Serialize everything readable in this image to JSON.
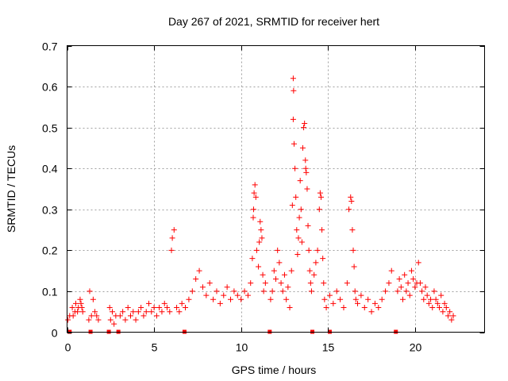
{
  "chart_data": {
    "type": "scatter",
    "title": "Day 267 of 2021, SRMTID for receiver hert",
    "xlabel": "GPS time / hours",
    "ylabel": "SRMTID / TECUs",
    "xlim": [
      0,
      24
    ],
    "ylim": [
      0,
      0.7
    ],
    "x_ticks": [
      0,
      5,
      10,
      15,
      20
    ],
    "x_tick_labels": [
      "0",
      "5",
      "10",
      "15",
      "20"
    ],
    "y_ticks": [
      0,
      0.1,
      0.2,
      0.3,
      0.4,
      0.5,
      0.6,
      0.7
    ],
    "y_tick_labels": [
      "0",
      "0.1",
      "0.2",
      "0.3",
      "0.4",
      "0.5",
      "0.6",
      "0.7"
    ],
    "grid": true,
    "series_color": "#ff0000",
    "marker": "plus",
    "zero_markers_x": [
      0.15,
      1.35,
      2.4,
      2.95,
      6.75,
      11.65,
      14.1,
      15.1,
      18.9
    ],
    "series": [
      {
        "name": "SRMTID",
        "x": [
          0.05,
          0.15,
          0.3,
          0.35,
          0.45,
          0.5,
          0.6,
          0.65,
          0.75,
          0.8,
          0.85,
          0.9,
          1.25,
          1.3,
          1.4,
          1.5,
          1.6,
          1.7,
          1.8,
          2.45,
          2.5,
          2.6,
          2.7,
          2.8,
          3.05,
          3.2,
          3.35,
          3.5,
          3.65,
          3.8,
          3.95,
          4.1,
          4.25,
          4.4,
          4.55,
          4.7,
          4.85,
          5.0,
          5.15,
          5.3,
          5.45,
          5.6,
          5.75,
          5.9,
          6.0,
          6.05,
          6.15,
          6.3,
          6.45,
          6.6,
          6.8,
          7.0,
          7.2,
          7.4,
          7.6,
          7.8,
          8.0,
          8.2,
          8.4,
          8.6,
          8.8,
          9.0,
          9.2,
          9.4,
          9.6,
          9.8,
          10.0,
          10.2,
          10.4,
          10.55,
          10.65,
          10.7,
          10.72,
          10.75,
          10.8,
          10.85,
          10.9,
          11.0,
          11.05,
          11.1,
          11.15,
          11.2,
          11.25,
          11.3,
          11.4,
          11.7,
          11.8,
          11.9,
          12.0,
          12.1,
          12.2,
          12.3,
          12.4,
          12.5,
          12.6,
          12.7,
          12.8,
          12.9,
          12.95,
          13.0,
          13.0,
          13.02,
          13.05,
          13.1,
          13.15,
          13.2,
          13.25,
          13.3,
          13.35,
          13.4,
          13.45,
          13.5,
          13.55,
          13.6,
          13.65,
          13.7,
          13.72,
          13.75,
          13.8,
          13.85,
          13.9,
          13.95,
          14.0,
          14.05,
          14.2,
          14.3,
          14.4,
          14.5,
          14.55,
          14.6,
          14.65,
          14.7,
          14.75,
          14.8,
          14.9,
          15.1,
          15.3,
          15.5,
          15.7,
          15.9,
          16.1,
          16.2,
          16.3,
          16.35,
          16.4,
          16.45,
          16.5,
          16.55,
          16.6,
          16.7,
          16.9,
          17.1,
          17.3,
          17.5,
          17.7,
          17.9,
          18.1,
          18.3,
          18.5,
          18.65,
          19.0,
          19.1,
          19.2,
          19.3,
          19.4,
          19.5,
          19.6,
          19.7,
          19.8,
          19.9,
          20.0,
          20.1,
          20.2,
          20.3,
          20.4,
          20.5,
          20.6,
          20.7,
          20.8,
          20.9,
          21.0,
          21.1,
          21.2,
          21.3,
          21.4,
          21.5,
          21.6,
          21.7,
          21.8,
          21.9,
          22.0,
          22.1,
          22.2
        ],
        "y": [
          0.03,
          0.04,
          0.06,
          0.04,
          0.05,
          0.07,
          0.05,
          0.06,
          0.08,
          0.07,
          0.06,
          0.05,
          0.03,
          0.1,
          0.04,
          0.08,
          0.05,
          0.04,
          0.03,
          0.06,
          0.03,
          0.05,
          0.02,
          0.04,
          0.04,
          0.05,
          0.03,
          0.06,
          0.04,
          0.05,
          0.03,
          0.05,
          0.06,
          0.04,
          0.05,
          0.07,
          0.05,
          0.06,
          0.04,
          0.06,
          0.05,
          0.07,
          0.06,
          0.05,
          0.2,
          0.23,
          0.25,
          0.06,
          0.05,
          0.07,
          0.06,
          0.08,
          0.1,
          0.13,
          0.15,
          0.11,
          0.09,
          0.12,
          0.08,
          0.1,
          0.07,
          0.09,
          0.11,
          0.08,
          0.1,
          0.09,
          0.08,
          0.1,
          0.09,
          0.12,
          0.18,
          0.28,
          0.3,
          0.34,
          0.36,
          0.33,
          0.2,
          0.16,
          0.22,
          0.27,
          0.25,
          0.23,
          0.14,
          0.1,
          0.12,
          0.08,
          0.1,
          0.15,
          0.13,
          0.2,
          0.17,
          0.12,
          0.1,
          0.14,
          0.08,
          0.11,
          0.06,
          0.15,
          0.31,
          0.52,
          0.62,
          0.59,
          0.46,
          0.4,
          0.33,
          0.25,
          0.19,
          0.23,
          0.28,
          0.37,
          0.3,
          0.22,
          0.45,
          0.5,
          0.51,
          0.42,
          0.4,
          0.39,
          0.35,
          0.26,
          0.2,
          0.15,
          0.12,
          0.1,
          0.14,
          0.17,
          0.2,
          0.3,
          0.34,
          0.33,
          0.25,
          0.18,
          0.12,
          0.08,
          0.06,
          0.09,
          0.07,
          0.1,
          0.08,
          0.06,
          0.12,
          0.3,
          0.33,
          0.32,
          0.25,
          0.2,
          0.16,
          0.1,
          0.08,
          0.07,
          0.09,
          0.06,
          0.08,
          0.05,
          0.07,
          0.06,
          0.08,
          0.1,
          0.12,
          0.15,
          0.1,
          0.13,
          0.11,
          0.08,
          0.14,
          0.1,
          0.12,
          0.09,
          0.15,
          0.13,
          0.11,
          0.12,
          0.17,
          0.12,
          0.1,
          0.08,
          0.11,
          0.09,
          0.07,
          0.08,
          0.06,
          0.1,
          0.08,
          0.07,
          0.06,
          0.09,
          0.05,
          0.07,
          0.06,
          0.04,
          0.05,
          0.03,
          0.04
        ]
      }
    ]
  }
}
